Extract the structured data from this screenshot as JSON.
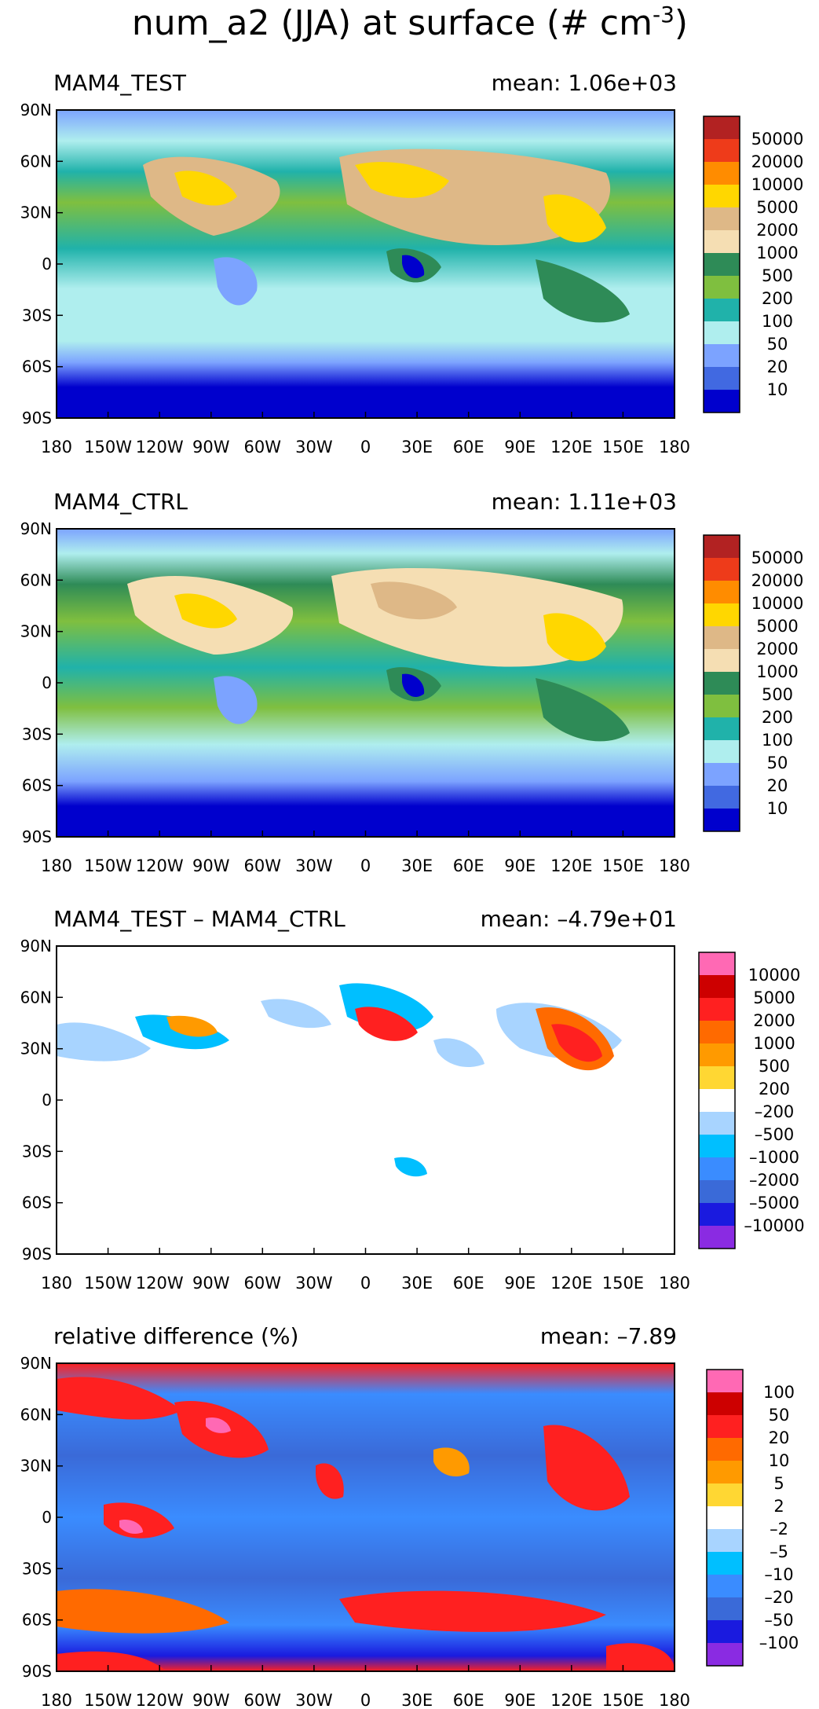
{
  "figure": {
    "title_main": "num_a2 (JJA) at surface (# cm",
    "title_sup": "-3",
    "title_close": ")"
  },
  "x_ticks": [
    "180",
    "150W",
    "120W",
    "90W",
    "60W",
    "30W",
    "0",
    "30E",
    "60E",
    "90E",
    "120E",
    "150E",
    "180"
  ],
  "y_ticks": [
    "90N",
    "60N",
    "30N",
    "0",
    "30S",
    "60S",
    "90S"
  ],
  "chart_data": [
    {
      "type": "heatmap",
      "subtitle": "MAM4_TEST",
      "mean_text": "mean:  1.06e+03",
      "xlim": [
        -180,
        180
      ],
      "ylim": [
        -90,
        90
      ],
      "colorbar": {
        "labels": [
          "50000",
          "20000",
          "10000",
          "5000",
          "2000",
          "1000",
          "500",
          "200",
          "100",
          "50",
          "20",
          "10"
        ],
        "colors": [
          "#b22222",
          "#ee3b1a",
          "#ff8c00",
          "#ffd700",
          "#deb887",
          "#f5deb3",
          "#2e8b57",
          "#7fbf3f",
          "#20b2aa",
          "#afeeee",
          "#7ca3ff",
          "#4169e1",
          "#0000cd"
        ]
      }
    },
    {
      "type": "heatmap",
      "subtitle": "MAM4_CTRL",
      "mean_text": "mean:  1.11e+03",
      "xlim": [
        -180,
        180
      ],
      "ylim": [
        -90,
        90
      ],
      "colorbar": {
        "labels": [
          "50000",
          "20000",
          "10000",
          "5000",
          "2000",
          "1000",
          "500",
          "200",
          "100",
          "50",
          "20",
          "10"
        ],
        "colors": [
          "#b22222",
          "#ee3b1a",
          "#ff8c00",
          "#ffd700",
          "#deb887",
          "#f5deb3",
          "#2e8b57",
          "#7fbf3f",
          "#20b2aa",
          "#afeeee",
          "#7ca3ff",
          "#4169e1",
          "#0000cd"
        ]
      }
    },
    {
      "type": "heatmap",
      "subtitle": "MAM4_TEST – MAM4_CTRL",
      "mean_text": "mean: –4.79e+01",
      "xlim": [
        -180,
        180
      ],
      "ylim": [
        -90,
        90
      ],
      "colorbar": {
        "labels": [
          "10000",
          "5000",
          "2000",
          "1000",
          "500",
          "200",
          "–200",
          "–500",
          "–1000",
          "–2000",
          "–5000",
          "–10000"
        ],
        "colors": [
          "#ff69b4",
          "#cd0000",
          "#ff2020",
          "#ff6a00",
          "#ff9a00",
          "#ffd733",
          "#ffffff",
          "#a8d4ff",
          "#00bfff",
          "#3a8cff",
          "#3a6ad8",
          "#1a1adf",
          "#8a2be2"
        ]
      }
    },
    {
      "type": "heatmap",
      "subtitle": "relative difference (%)",
      "mean_text": "mean:  –7.89",
      "xlim": [
        -180,
        180
      ],
      "ylim": [
        -90,
        90
      ],
      "colorbar": {
        "labels": [
          "100",
          "50",
          "20",
          "10",
          "5",
          "2",
          "–2",
          "–5",
          "–10",
          "–20",
          "–50",
          "–100"
        ],
        "colors": [
          "#ff69b4",
          "#cd0000",
          "#ff2020",
          "#ff6a00",
          "#ff9a00",
          "#ffd733",
          "#ffffff",
          "#a8d4ff",
          "#00bfff",
          "#3a8cff",
          "#3a6ad8",
          "#1a1adf",
          "#8a2be2"
        ]
      }
    }
  ]
}
